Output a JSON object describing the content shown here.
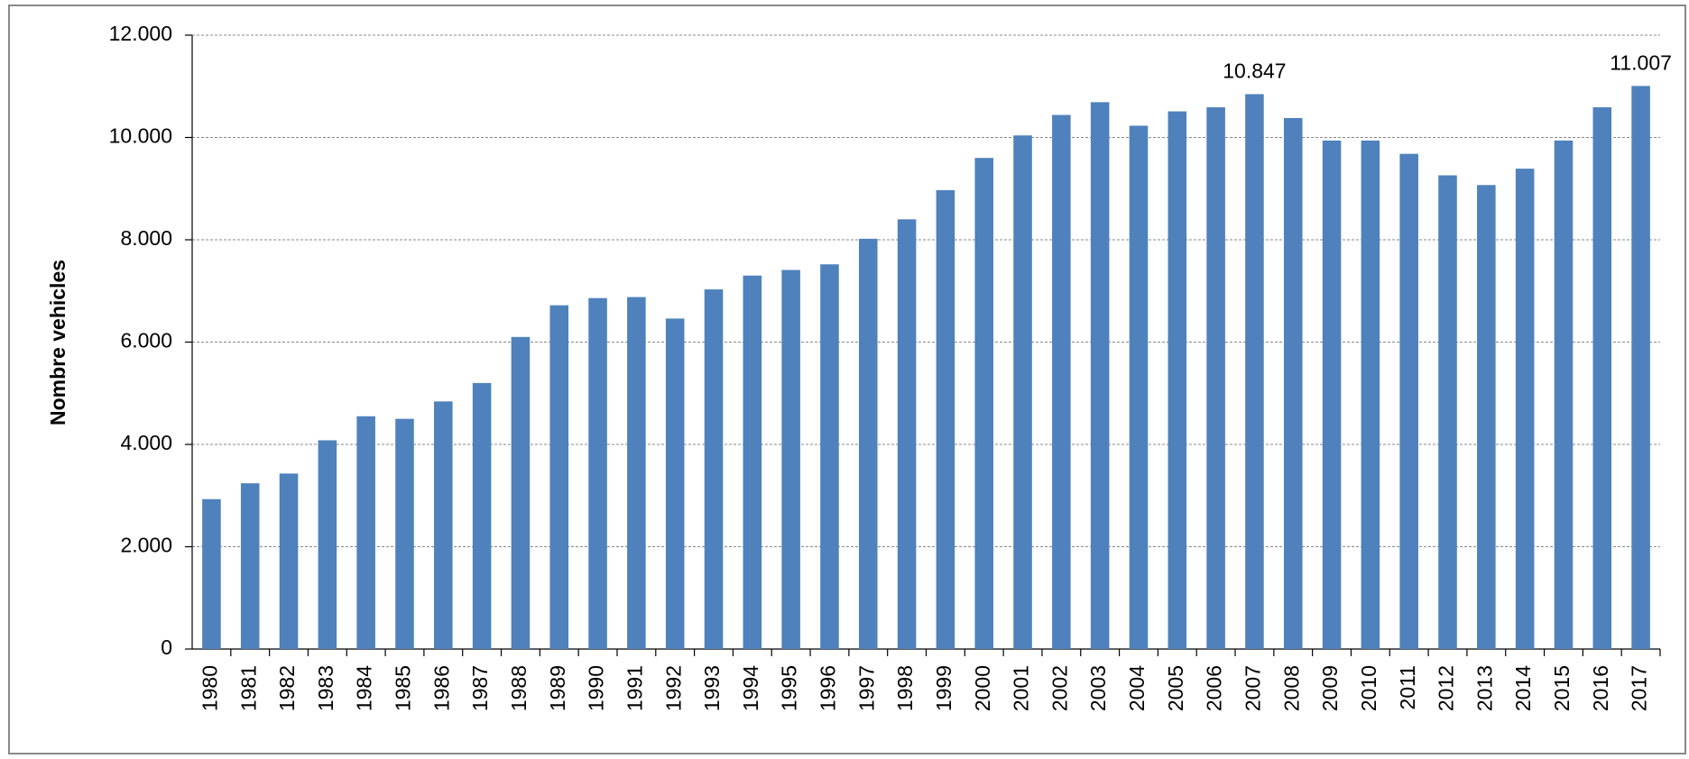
{
  "chart_data": {
    "type": "bar",
    "y_label": "Nombre vehicles",
    "categories": [
      "1980",
      "1981",
      "1982",
      "1983",
      "1984",
      "1985",
      "1986",
      "1987",
      "1988",
      "1989",
      "1990",
      "1991",
      "1992",
      "1993",
      "1994",
      "1995",
      "1996",
      "1997",
      "1998",
      "1999",
      "2000",
      "2001",
      "2002",
      "2003",
      "2004",
      "2005",
      "2006",
      "2007",
      "2008",
      "2009",
      "2010",
      "2011",
      "2012",
      "2013",
      "2014",
      "2015",
      "2016",
      "2017"
    ],
    "values": [
      2930,
      3240,
      3430,
      4080,
      4550,
      4500,
      4840,
      5200,
      6100,
      6720,
      6860,
      6880,
      6460,
      7030,
      7300,
      7410,
      7520,
      8020,
      8400,
      8970,
      9600,
      10040,
      10440,
      10690,
      10230,
      10510,
      10590,
      10847,
      10380,
      9940,
      9940,
      9680,
      9260,
      9070,
      9390,
      9940,
      10590,
      11007
    ],
    "value_labels": [
      null,
      null,
      null,
      null,
      null,
      null,
      null,
      null,
      null,
      null,
      null,
      null,
      null,
      null,
      null,
      null,
      null,
      null,
      null,
      null,
      null,
      null,
      null,
      null,
      null,
      null,
      null,
      "10.847",
      null,
      null,
      null,
      null,
      null,
      null,
      null,
      null,
      null,
      "11.007"
    ],
    "color": "#4f81bd",
    "ylim": [
      0,
      12000
    ],
    "yticks": [
      0,
      {
        "value": 2000,
        "label": "2.000"
      },
      {
        "value": 4000,
        "label": "4.000"
      },
      {
        "value": 6000,
        "label": "6.000"
      },
      {
        "value": 8000,
        "label": "8.000"
      },
      {
        "value": 10000,
        "label": "10.000"
      },
      {
        "value": 12000,
        "label": "12.000"
      }
    ],
    "grid": true
  }
}
